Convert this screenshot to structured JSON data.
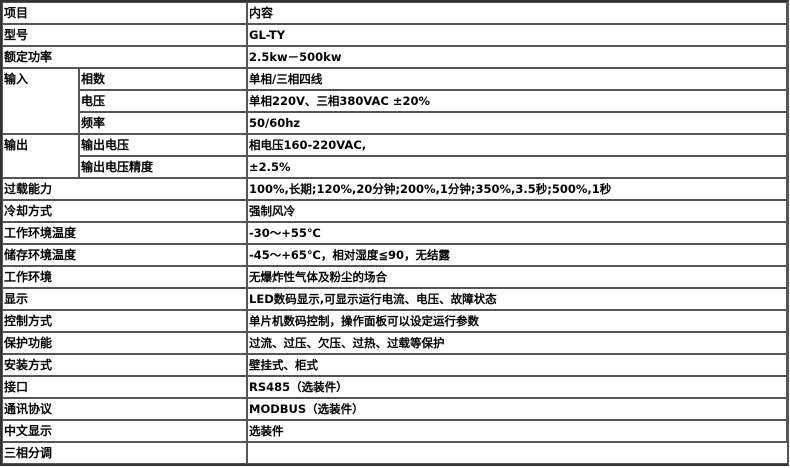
{
  "header": {
    "item": "项目",
    "content": "内容"
  },
  "rows_before": [
    {
      "label": "型号",
      "value": "GL-TY"
    },
    {
      "label": "额定功率",
      "value": "2.5kw－500kw"
    }
  ],
  "input": {
    "label": "输入",
    "sub": [
      {
        "label": "相数",
        "value": "单相/三相四线"
      },
      {
        "label": "电压",
        "value": "单相220V、三相380VAC ±20%"
      },
      {
        "label": "频率",
        "value": "50/60hz"
      }
    ]
  },
  "output": {
    "label": "输出",
    "sub": [
      {
        "label": "输出电压",
        "value": "相电压160-220VAC,"
      },
      {
        "label": "输出电压精度",
        "value": "±2.5%"
      }
    ]
  },
  "rows_after": [
    {
      "label": "过载能力",
      "value": "100%,长期;120%,20分钟;200%,1分钟;350%,3.5秒;500%,1秒"
    },
    {
      "label": "冷却方式",
      "value": "强制风冷"
    },
    {
      "label": "工作环境温度",
      "value": "-30～+55℃"
    },
    {
      "label": "储存环境温度",
      "value": "-45～+65℃，相对湿度≦90，无结露"
    },
    {
      "label": "工作环境",
      "value": "无爆炸性气体及粉尘的场合"
    },
    {
      "label": "显示",
      "value": "LED数码显示,可显示运行电流、电压、故障状态"
    },
    {
      "label": "控制方式",
      "value": "单片机数码控制，操作面板可以设定运行参数"
    },
    {
      "label": "保护功能",
      "value": "过流、过压、欠压、过热、过载等保护"
    },
    {
      "label": "安装方式",
      "value": "壁挂式、柜式"
    },
    {
      "label": "接口",
      "value": "RS485（选装件）"
    },
    {
      "label": "通讯协议",
      "value": "MODBUS（选装件）"
    },
    {
      "label": "中文显示",
      "value": "选装件"
    },
    {
      "label": "三相分调",
      "value": ""
    }
  ]
}
